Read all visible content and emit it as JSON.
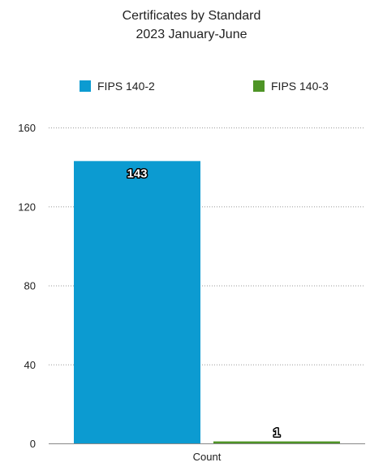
{
  "chart_data": {
    "type": "bar",
    "title": "Certificates by Standard",
    "subtitle": "2023 January-June",
    "categories": [
      "Count"
    ],
    "series": [
      {
        "name": "FIPS 140-2",
        "values": [
          143
        ],
        "color": "#0c9bd1"
      },
      {
        "name": "FIPS 140-3",
        "values": [
          1
        ],
        "color": "#4e9426"
      }
    ],
    "ylim": [
      0,
      160
    ],
    "yticks": [
      0,
      40,
      80,
      120,
      160
    ],
    "xlabel": "",
    "ylabel": "",
    "grid": true,
    "legend_position": "top"
  }
}
